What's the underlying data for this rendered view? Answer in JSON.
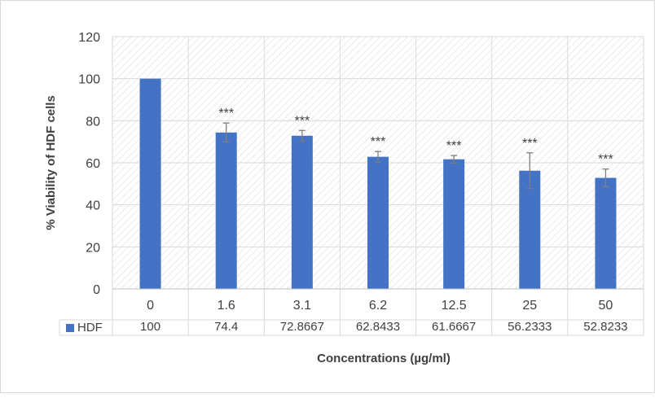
{
  "chart_data": {
    "type": "bar",
    "categories": [
      "0",
      "1.6",
      "3.1",
      "6.2",
      "12.5",
      "25",
      "50"
    ],
    "series": [
      {
        "name": "HDF",
        "values": [
          100,
          74.4,
          72.8667,
          62.8433,
          61.6667,
          56.2333,
          52.8233
        ],
        "value_labels": [
          "100",
          "74.4",
          "72.8667",
          "62.8433",
          "61.6667",
          "56.2333",
          "52.8233"
        ],
        "error": [
          0,
          4.5,
          2.5,
          2.5,
          1.8,
          8.5,
          4.2
        ],
        "annotations": [
          "",
          "***",
          "***",
          "***",
          "***",
          "***",
          "***"
        ]
      }
    ],
    "xlabel": "Concentrations (µg/ml)",
    "ylabel": "% Viability of HDF cells",
    "ylim": [
      0,
      120
    ],
    "yticks": [
      0,
      20,
      40,
      60,
      80,
      100,
      120
    ],
    "grid": true,
    "plot_background": "diagonal-hatch",
    "data_table": true,
    "legend_position": "data-table",
    "colors": {
      "bar": "#4472c4",
      "grid": "#d9d9d9",
      "hatch": "#e3e3e3",
      "text": "#404040",
      "error": "#7f7f7f"
    }
  }
}
